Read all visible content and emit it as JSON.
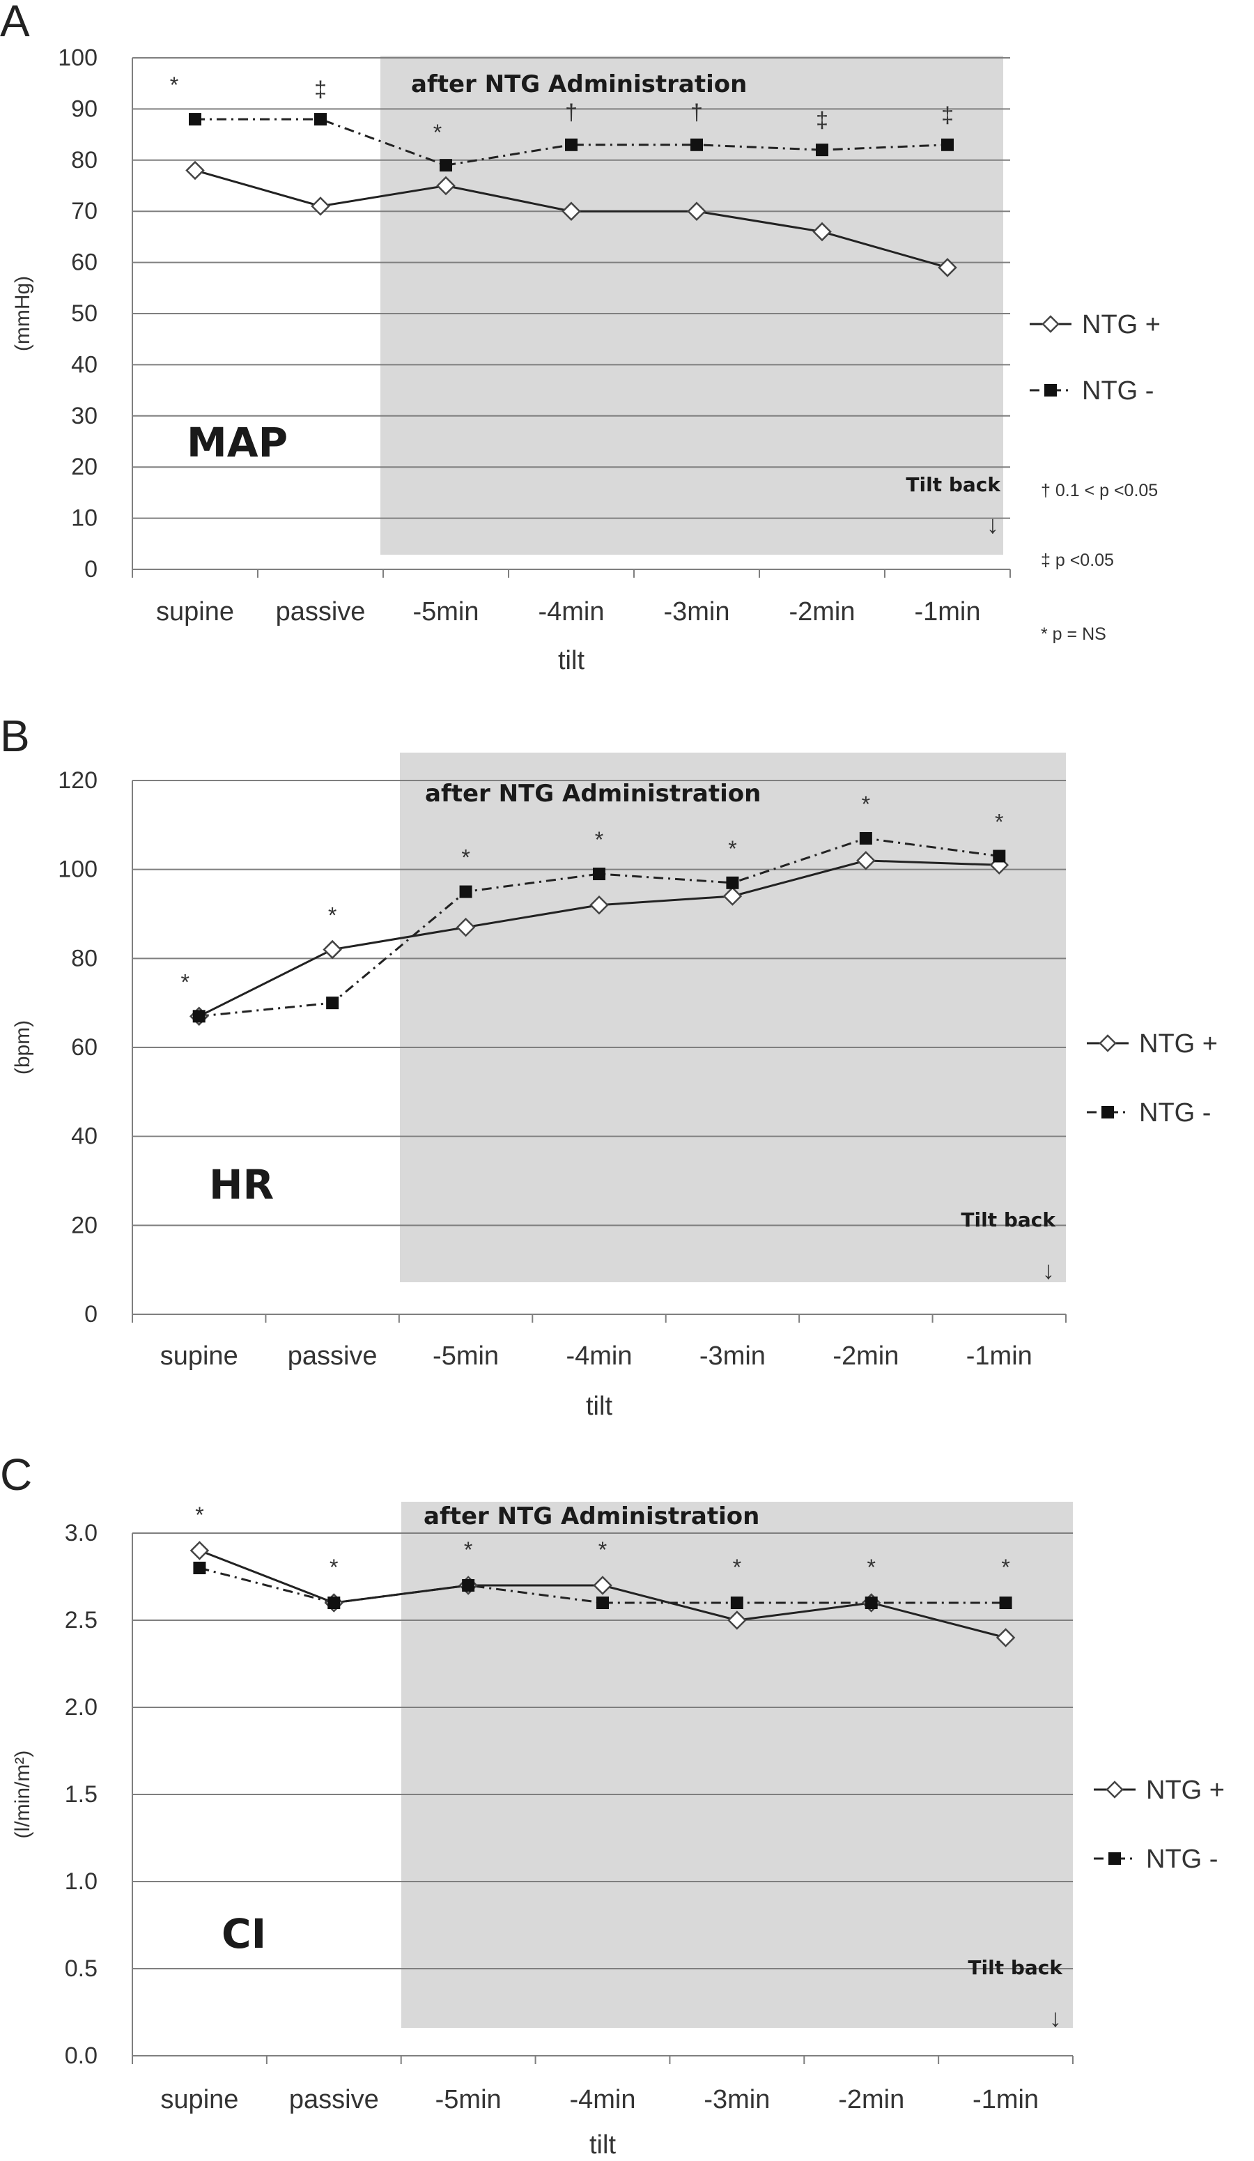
{
  "colors": {
    "shade": "#d9d9d9",
    "ink": "#222222",
    "grid": "#7f7f7f"
  },
  "chart_data": [
    {
      "panel": "A",
      "type": "line",
      "title": "MAP",
      "ylabel": "(mmHg)",
      "xlabel": "tilt",
      "ylim": [
        0,
        100
      ],
      "ytick_step": 10,
      "ytick_decimals": 0,
      "categories": [
        "supine",
        "passive",
        "-5min",
        "-4min",
        "-3min",
        "-2min",
        "-1min"
      ],
      "series": [
        {
          "name": "NTG +",
          "marker": "open-diamond",
          "line": "solid",
          "values": [
            78,
            71,
            75,
            70,
            70,
            66,
            59
          ]
        },
        {
          "name": "NTG -",
          "marker": "filled-square",
          "line": "dash-dot",
          "values": [
            88,
            88,
            79,
            83,
            83,
            82,
            83
          ]
        }
      ],
      "significance": [
        "*",
        "‡",
        "*",
        "†",
        "†",
        "‡",
        "‡"
      ],
      "shaded_region_label": "after NTG Administration",
      "tilt_back_label": "Tilt back",
      "arrow": "↓",
      "footnotes": [
        "† 0.1 < p <0.05",
        "‡ p <0.05",
        "* p = NS"
      ]
    },
    {
      "panel": "B",
      "type": "line",
      "title": "HR",
      "ylabel": "(bpm)",
      "xlabel": "tilt",
      "ylim": [
        0,
        120
      ],
      "ytick_step": 20,
      "ytick_decimals": 0,
      "categories": [
        "supine",
        "passive",
        "-5min",
        "-4min",
        "-3min",
        "-2min",
        "-1min"
      ],
      "series": [
        {
          "name": "NTG +",
          "marker": "open-diamond",
          "line": "solid",
          "values": [
            67,
            82,
            87,
            92,
            94,
            102,
            101
          ]
        },
        {
          "name": "NTG -",
          "marker": "filled-square",
          "line": "dash-dot",
          "values": [
            67,
            70,
            95,
            99,
            97,
            107,
            103
          ]
        }
      ],
      "significance": [
        "*",
        "*",
        "*",
        "*",
        "*",
        "*",
        "*"
      ],
      "shaded_region_label": "after NTG Administration",
      "tilt_back_label": "Tilt back",
      "arrow": "↓"
    },
    {
      "panel": "C",
      "type": "line",
      "title": "CI",
      "ylabel": "(l/min/m²)",
      "xlabel": "tilt",
      "ylim": [
        0,
        3.0
      ],
      "ytick_step": 0.5,
      "ytick_decimals": 1,
      "categories": [
        "supine",
        "passive",
        "-5min",
        "-4min",
        "-3min",
        "-2min",
        "-1min"
      ],
      "series": [
        {
          "name": "NTG +",
          "marker": "open-diamond",
          "line": "solid",
          "values": [
            2.9,
            2.6,
            2.7,
            2.7,
            2.5,
            2.6,
            2.4
          ]
        },
        {
          "name": "NTG -",
          "marker": "filled-square",
          "line": "dash-dot",
          "values": [
            2.8,
            2.6,
            2.7,
            2.6,
            2.6,
            2.6,
            2.6
          ]
        }
      ],
      "significance": [
        "*",
        "*",
        "*",
        "*",
        "*",
        "*",
        "*"
      ],
      "shaded_region_label": "after NTG Administration",
      "tilt_back_label": "Tilt back",
      "arrow": "↓"
    }
  ]
}
